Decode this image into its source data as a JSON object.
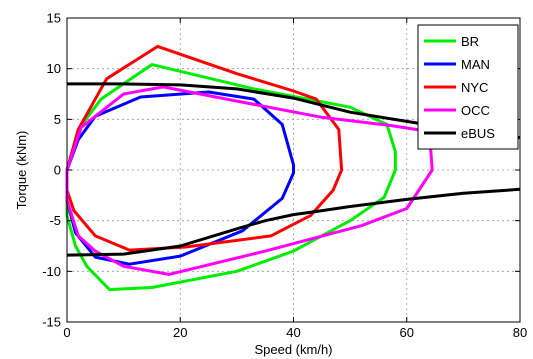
{
  "chart_data": {
    "type": "line",
    "title": "",
    "xlabel": "Speed (km/h)",
    "ylabel": "Torque (kNm)",
    "xlim": [
      0,
      80
    ],
    "ylim": [
      -15,
      15
    ],
    "xticks": [
      0,
      20,
      40,
      60,
      80
    ],
    "yticks": [
      -15,
      -10,
      -5,
      0,
      5,
      10,
      15
    ],
    "grid": true,
    "legend_position": "top-right",
    "series": [
      {
        "name": "BR",
        "color": "#00ee00",
        "closed": true,
        "x": [
          0,
          2,
          6,
          15,
          33,
          50,
          56.5,
          58,
          58,
          56,
          50,
          40,
          30,
          15,
          7.5,
          3.5,
          1.5,
          0
        ],
        "y": [
          0,
          4,
          7,
          10.4,
          8,
          6.2,
          4.5,
          1.8,
          0,
          -2.7,
          -5,
          -8,
          -10,
          -11.6,
          -11.8,
          -9.5,
          -7.5,
          -4.5
        ]
      },
      {
        "name": "MAN",
        "color": "#0000ff",
        "closed": true,
        "x": [
          0,
          2,
          5,
          13,
          25,
          33,
          38,
          40,
          40,
          38,
          31,
          20,
          11,
          5,
          1.5,
          0
        ],
        "y": [
          0,
          3,
          5.3,
          7.2,
          7.7,
          7,
          4.5,
          0.5,
          -0.3,
          -2.8,
          -6,
          -8.5,
          -9.3,
          -8.6,
          -6.2,
          -3
        ]
      },
      {
        "name": "NYC",
        "color": "#ff0000",
        "closed": true,
        "x": [
          0,
          2,
          7,
          16,
          30,
          40,
          44,
          48,
          48.5,
          47,
          43,
          36,
          21,
          11,
          5,
          1.2,
          0
        ],
        "y": [
          0,
          4,
          9,
          12.2,
          9.5,
          7.8,
          7,
          4,
          0,
          -2,
          -4.5,
          -6.5,
          -7.6,
          -7.9,
          -6.5,
          -4,
          -2
        ]
      },
      {
        "name": "OCC",
        "color": "#ff00ff",
        "closed": true,
        "x": [
          0,
          2.5,
          10,
          17,
          30,
          45,
          57,
          64,
          64.5,
          60,
          52,
          35,
          18,
          10,
          5,
          2,
          0
        ],
        "y": [
          0,
          4.2,
          7.5,
          8.2,
          6.8,
          5.2,
          4.4,
          3.8,
          0,
          -3.8,
          -5.5,
          -8,
          -10.3,
          -9.5,
          -8,
          -6.5,
          -3
        ]
      },
      {
        "name": "eBUS",
        "color": "#000000",
        "closed": false,
        "x": [
          0,
          10,
          20,
          30,
          40,
          50,
          60,
          70,
          80
        ],
        "y": [
          8.5,
          8.5,
          8.4,
          8.0,
          7.1,
          5.7,
          4.8,
          3.9,
          3.2
        ],
        "x2": [
          80,
          70,
          60,
          50,
          44,
          40,
          35,
          30,
          20,
          10,
          0
        ],
        "y2": [
          -1.9,
          -2.3,
          -2.9,
          -3.6,
          -4.1,
          -4.4,
          -5.0,
          -5.8,
          -7.5,
          -8.3,
          -8.4
        ]
      }
    ],
    "legend": [
      "BR",
      "MAN",
      "NYC",
      "OCC",
      "eBUS"
    ]
  }
}
